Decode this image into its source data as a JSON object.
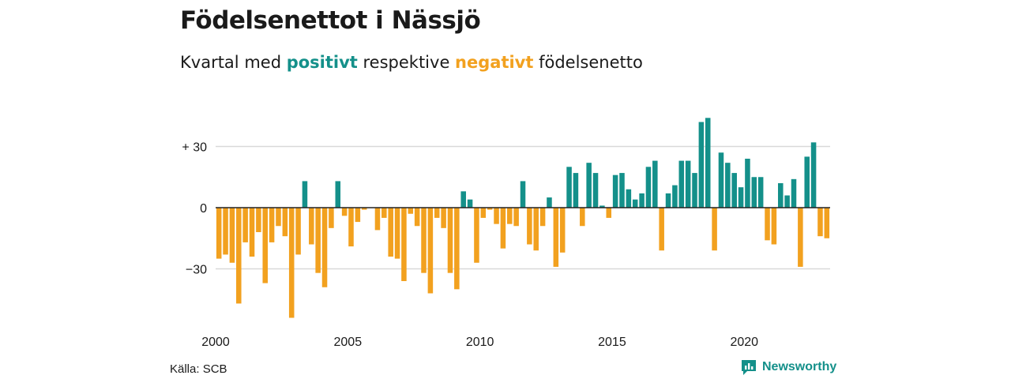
{
  "title": "Födelsenettot i Nässjö",
  "subtitle": {
    "part1": "Kvartal med ",
    "positive": "positivt",
    "part2": " respektive ",
    "negative": "negativt",
    "part3": " födelsenetto"
  },
  "source": "Källa: SCB",
  "brand": {
    "name": "Newsworthy",
    "icon": "newsworthy-logo-icon"
  },
  "colors": {
    "positive": "#14908a",
    "negative": "#f2a11f",
    "grid": "#d9d9d9"
  },
  "chart_data": {
    "type": "bar",
    "title": "Födelsenettot i Nässjö",
    "xlabel": "",
    "ylabel": "",
    "ylim": [
      -48,
      45
    ],
    "grid": true,
    "y_ticks": [
      {
        "value": 30,
        "label": "+ 30"
      },
      {
        "value": 0,
        "label": "0"
      },
      {
        "value": -30,
        "label": "−30"
      }
    ],
    "x_ticks": [
      {
        "index": 0,
        "label": "2000"
      },
      {
        "index": 20,
        "label": "2005"
      },
      {
        "index": 40,
        "label": "2010"
      },
      {
        "index": 60,
        "label": "2015"
      },
      {
        "index": 80,
        "label": "2020"
      }
    ],
    "period": "quarter",
    "start": "2000 Q1",
    "values": [
      -25,
      -23,
      -27,
      -47,
      -17,
      -24,
      -12,
      -37,
      -17,
      -9,
      -14,
      -54,
      -23,
      13,
      -18,
      -32,
      -39,
      -10,
      13,
      -4,
      -19,
      -7,
      -1,
      0,
      -11,
      -5,
      -24,
      -25,
      -36,
      -3,
      -9,
      -32,
      -42,
      -5,
      -10,
      -32,
      -40,
      8,
      4,
      -27,
      -5,
      -1,
      -8,
      -20,
      -8,
      -9,
      13,
      -18,
      -21,
      -9,
      5,
      -29,
      -22,
      20,
      17,
      -9,
      22,
      17,
      1,
      -5,
      16,
      17,
      9,
      4,
      7,
      20,
      23,
      -21,
      7,
      11,
      23,
      23,
      17,
      42,
      44,
      -21,
      27,
      22,
      17,
      10,
      24,
      15,
      15,
      -16,
      -18,
      12,
      6,
      14,
      -29,
      25,
      32,
      -14,
      -15
    ]
  }
}
